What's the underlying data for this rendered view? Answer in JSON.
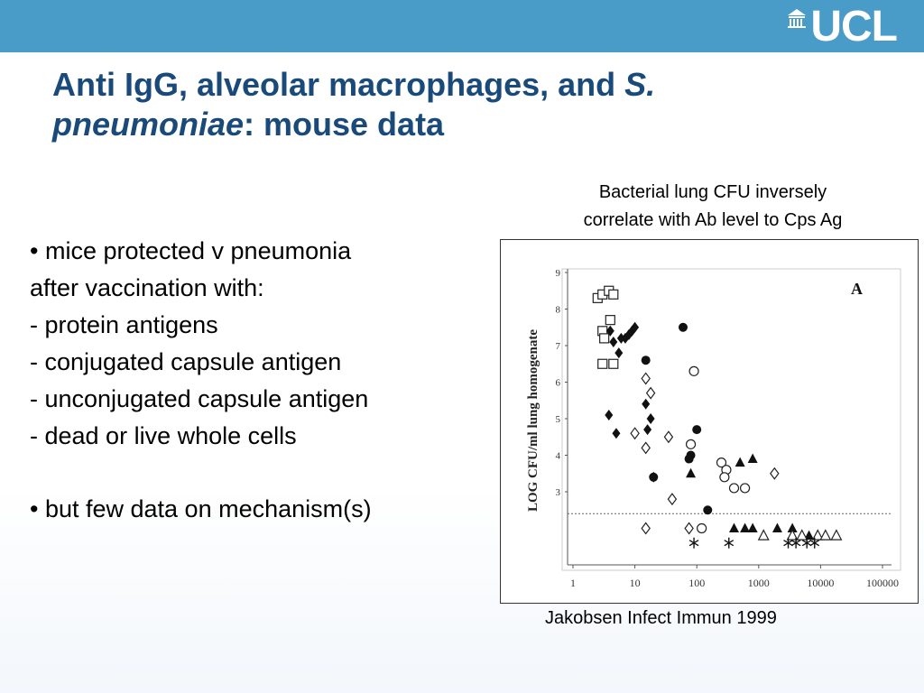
{
  "header": {
    "logo_text": "UCL",
    "logo_icon": "portico-icon",
    "bar_color": "#4a9cc8"
  },
  "title": {
    "part1": "Anti IgG, alveolar macrophages, and ",
    "italic1": "S. pneumoniae",
    "part2": ":  mouse data"
  },
  "bullets": {
    "b1_line1": "• mice protected v pneumonia",
    "b1_line2": "after vaccination with:",
    "items": [
      "- protein antigens",
      "- conjugated capsule antigen",
      "- unconjugated capsule antigen",
      "- dead or live whole cells"
    ],
    "b2": "• but few data on mechanism(s)"
  },
  "caption_top": {
    "line1": "Bacterial lung CFU inversely",
    "line2": "correlate with Ab level to Cps Ag"
  },
  "caption_bottom": "Jakobsen Infect Immun 1999",
  "chart_data": {
    "type": "scatter",
    "panel_label": "A",
    "ylabel": "LOG CFU/ml lung homogenate",
    "xlabel": "",
    "x_scale": "log",
    "xlim": [
      1,
      100000
    ],
    "ylim": [
      1,
      9
    ],
    "x_ticks": [
      "1",
      "10",
      "100",
      "1000",
      "10000",
      "100000"
    ],
    "y_ticks": [
      "3",
      "4",
      "5",
      "6",
      "7",
      "8",
      "9"
    ],
    "detection_limit_line": 2.4,
    "series": [
      {
        "marker": "open-square",
        "points": [
          [
            2.5,
            8.3
          ],
          [
            3,
            8.4
          ],
          [
            3.8,
            8.5
          ],
          [
            4.5,
            8.4
          ],
          [
            3,
            7.4
          ],
          [
            4,
            7.7
          ],
          [
            3.2,
            7.2
          ],
          [
            3,
            6.5
          ],
          [
            4.5,
            6.5
          ]
        ]
      },
      {
        "marker": "filled-diamond",
        "points": [
          [
            4,
            7.4
          ],
          [
            4.5,
            7.1
          ],
          [
            5.5,
            6.8
          ],
          [
            6,
            7.2
          ],
          [
            7,
            7.2
          ],
          [
            8,
            7.3
          ],
          [
            9,
            7.4
          ],
          [
            10,
            7.5
          ],
          [
            3.8,
            5.1
          ],
          [
            5,
            4.6
          ],
          [
            15,
            5.4
          ],
          [
            18,
            5.0
          ],
          [
            16,
            4.7
          ],
          [
            20,
            3.4
          ]
        ]
      },
      {
        "marker": "filled-circle",
        "points": [
          [
            60,
            7.5
          ],
          [
            15,
            6.6
          ],
          [
            100,
            4.7
          ],
          [
            80,
            4.0
          ],
          [
            75,
            3.9
          ],
          [
            150,
            2.5
          ],
          [
            20,
            3.4
          ]
        ]
      },
      {
        "marker": "open-circle",
        "points": [
          [
            90,
            6.3
          ],
          [
            80,
            4.3
          ],
          [
            250,
            3.8
          ],
          [
            300,
            3.6
          ],
          [
            280,
            3.4
          ],
          [
            400,
            3.1
          ],
          [
            600,
            3.1
          ],
          [
            120,
            2.0
          ]
        ]
      },
      {
        "marker": "open-diamond",
        "points": [
          [
            15,
            6.1
          ],
          [
            18,
            5.7
          ],
          [
            10,
            4.6
          ],
          [
            15,
            4.2
          ],
          [
            35,
            4.5
          ],
          [
            40,
            2.8
          ],
          [
            15,
            2.0
          ],
          [
            75,
            2.0
          ],
          [
            1800,
            3.5
          ]
        ]
      },
      {
        "marker": "filled-triangle",
        "points": [
          [
            80,
            3.5
          ],
          [
            500,
            3.8
          ],
          [
            800,
            3.9
          ],
          [
            400,
            2.0
          ],
          [
            600,
            2.0
          ],
          [
            800,
            2.0
          ],
          [
            2000,
            2.0
          ],
          [
            3500,
            2.0
          ],
          [
            5000,
            1.8
          ],
          [
            6500,
            1.8
          ]
        ]
      },
      {
        "marker": "open-triangle",
        "points": [
          [
            1200,
            1.8
          ],
          [
            3500,
            1.8
          ],
          [
            5000,
            1.8
          ],
          [
            9000,
            1.8
          ],
          [
            12000,
            1.8
          ],
          [
            18000,
            1.8
          ]
        ]
      },
      {
        "marker": "asterisk",
        "points": [
          [
            90,
            1.6
          ],
          [
            330,
            1.6
          ],
          [
            3000,
            1.6
          ],
          [
            4000,
            1.6
          ],
          [
            6000,
            1.6
          ],
          [
            8000,
            1.6
          ]
        ]
      }
    ]
  }
}
